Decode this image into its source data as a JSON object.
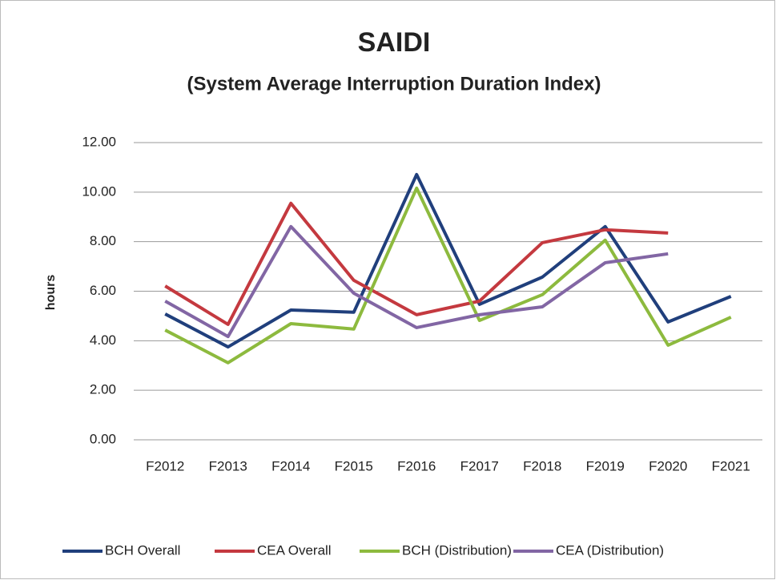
{
  "chart_data": {
    "type": "line",
    "title": "SAIDI",
    "subtitle": "(System Average Interruption Duration Index)",
    "y_label": "hours",
    "categories": [
      "F2012",
      "F2013",
      "F2014",
      "F2015",
      "F2016",
      "F2017",
      "F2018",
      "F2019",
      "F2020",
      "F2021"
    ],
    "series": [
      {
        "name": "BCH Overall",
        "color": "#203f7c",
        "values": [
          5.08,
          3.75,
          5.24,
          5.15,
          10.71,
          5.47,
          6.57,
          8.61,
          4.76,
          5.79
        ]
      },
      {
        "name": "CEA Overall",
        "color": "#c4393f",
        "values": [
          6.21,
          4.66,
          9.55,
          6.44,
          5.05,
          5.6,
          7.96,
          8.48,
          8.35,
          null
        ]
      },
      {
        "name": "BCH (Distribution)",
        "color": "#8dba3e",
        "values": [
          4.43,
          3.11,
          4.69,
          4.47,
          10.16,
          4.82,
          5.86,
          8.06,
          3.82,
          4.95
        ]
      },
      {
        "name": "CEA (Distribution)",
        "color": "#8266a4",
        "values": [
          5.6,
          4.17,
          8.61,
          5.92,
          4.53,
          5.05,
          5.37,
          7.15,
          7.51,
          null
        ]
      }
    ],
    "ylim": [
      0,
      12
    ],
    "yticks": [
      {
        "value": 0,
        "label": "0.00"
      },
      {
        "value": 2,
        "label": "2.00"
      },
      {
        "value": 4,
        "label": "4.00"
      },
      {
        "value": 6,
        "label": "6.00"
      },
      {
        "value": 8,
        "label": "8.00"
      },
      {
        "value": 10,
        "label": "10.00"
      },
      {
        "value": 12,
        "label": "12.00"
      }
    ],
    "grid": true,
    "legend": "bottom"
  }
}
